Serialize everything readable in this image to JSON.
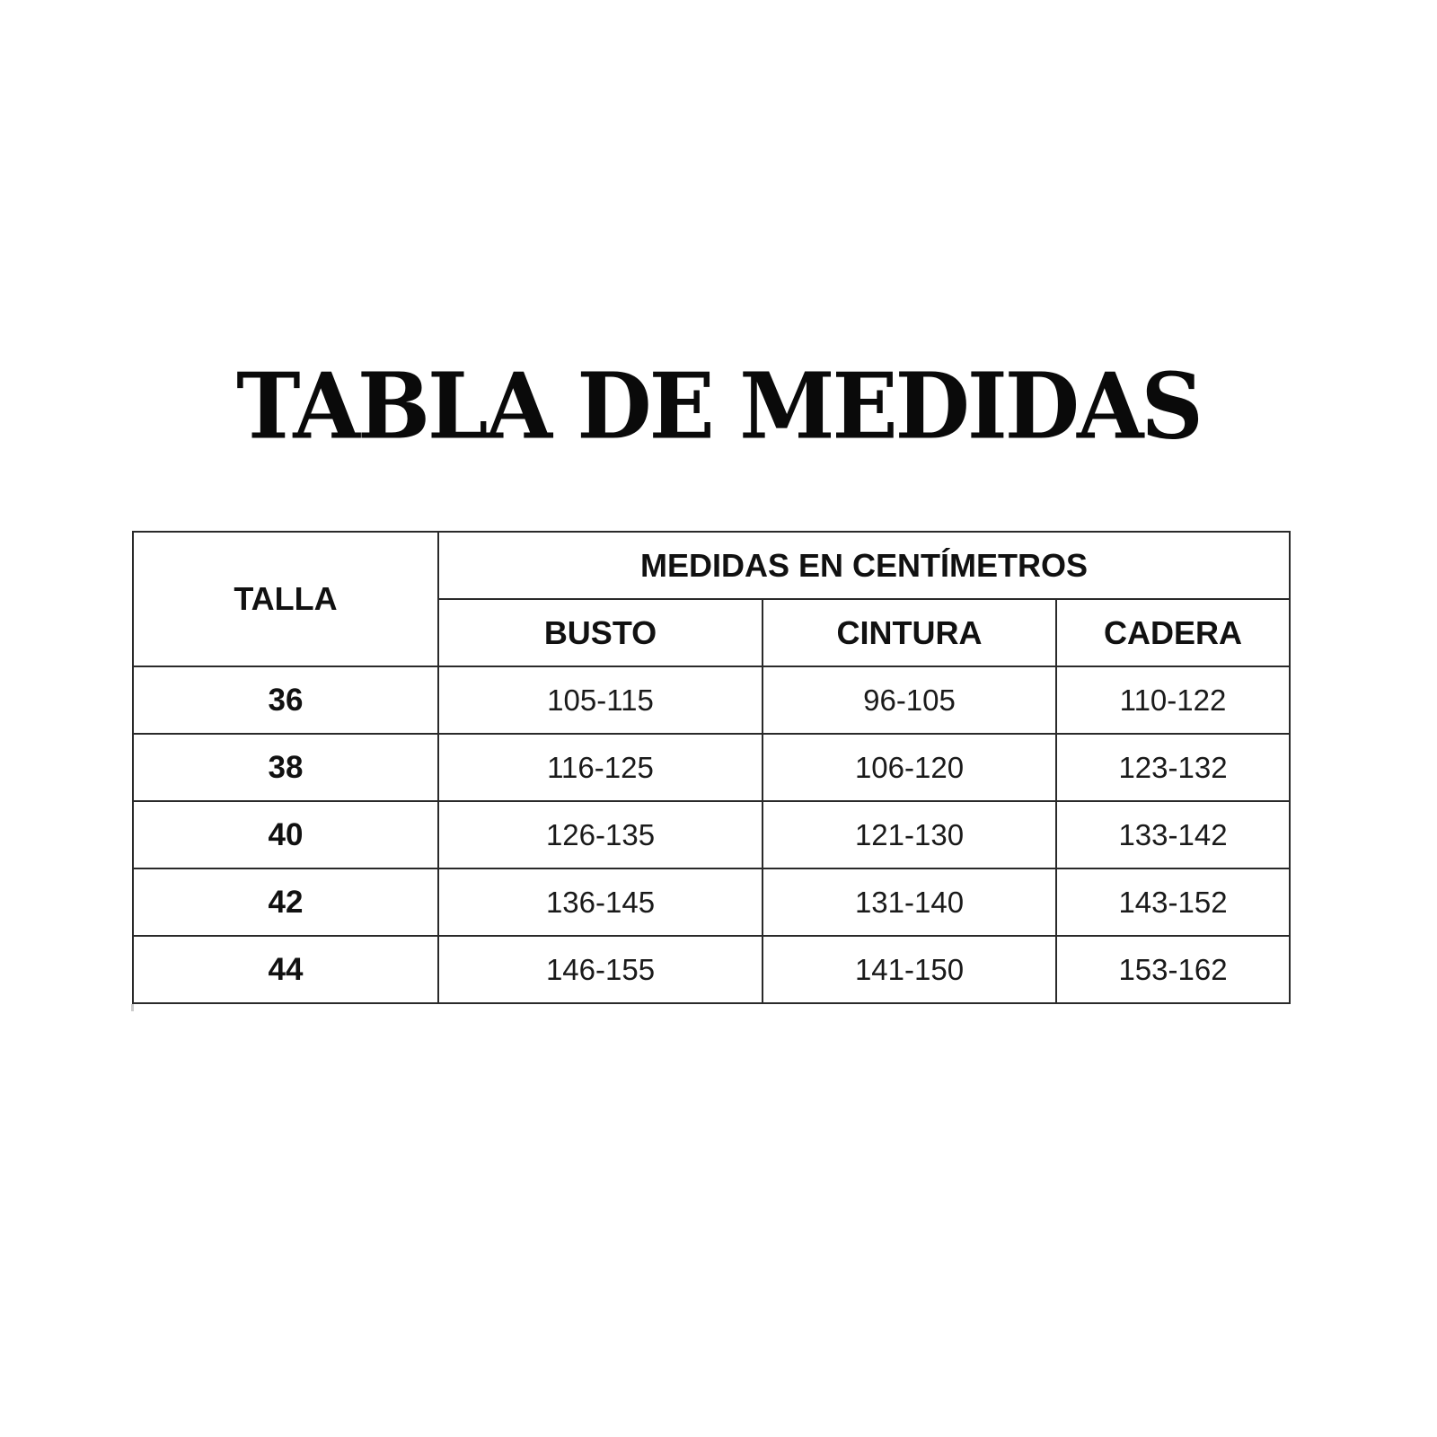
{
  "title": "TABLA DE MEDIDAS",
  "table": {
    "size_header": "TALLA",
    "group_header": "MEDIDAS EN CENTÍMETROS",
    "columns": [
      "BUSTO",
      "CINTURA",
      "CADERA"
    ],
    "rows": [
      {
        "talla": "36",
        "busto": "105-115",
        "cintura": "96-105",
        "cadera": "110-122"
      },
      {
        "talla": "38",
        "busto": "116-125",
        "cintura": "106-120",
        "cadera": "123-132"
      },
      {
        "talla": "40",
        "busto": "126-135",
        "cintura": "121-130",
        "cadera": "133-142"
      },
      {
        "talla": "42",
        "busto": "136-145",
        "cintura": "131-140",
        "cadera": "143-152"
      },
      {
        "talla": "44",
        "busto": "146-155",
        "cintura": "141-150",
        "cadera": "153-162"
      }
    ]
  }
}
